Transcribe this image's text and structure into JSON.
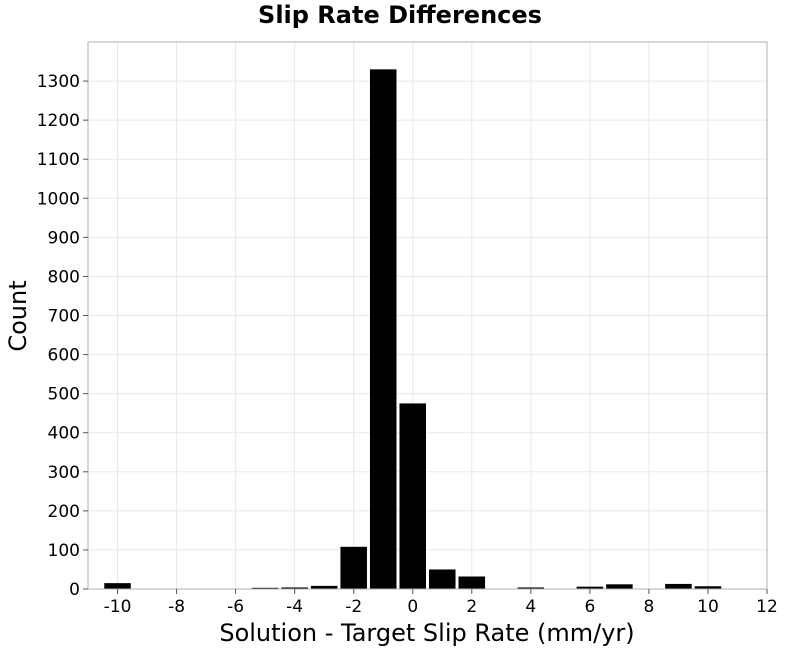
{
  "chart_data": {
    "type": "bar",
    "title": "Slip Rate Differences",
    "xlabel": "Solution - Target Slip Rate (mm/yr)",
    "ylabel": "Count",
    "xlim": [
      -11,
      12
    ],
    "ylim": [
      0,
      1400
    ],
    "bin_width": 1,
    "x_ticks": [
      -10,
      -8,
      -6,
      -4,
      -2,
      0,
      2,
      4,
      6,
      8,
      10,
      12
    ],
    "y_ticks": [
      0,
      100,
      200,
      300,
      400,
      500,
      600,
      700,
      800,
      900,
      1000,
      1100,
      1200,
      1300
    ],
    "grid": true,
    "bar_color": "#000000",
    "x": [
      -10,
      -9,
      -8,
      -7,
      -6,
      -5,
      -4,
      -3,
      -2,
      -1,
      0,
      1,
      2,
      3,
      4,
      5,
      6,
      7,
      8,
      9,
      10
    ],
    "values": [
      15,
      0,
      0,
      0,
      0,
      3,
      4,
      8,
      108,
      1330,
      475,
      50,
      32,
      1,
      4,
      0,
      6,
      12,
      0,
      13,
      7
    ]
  }
}
